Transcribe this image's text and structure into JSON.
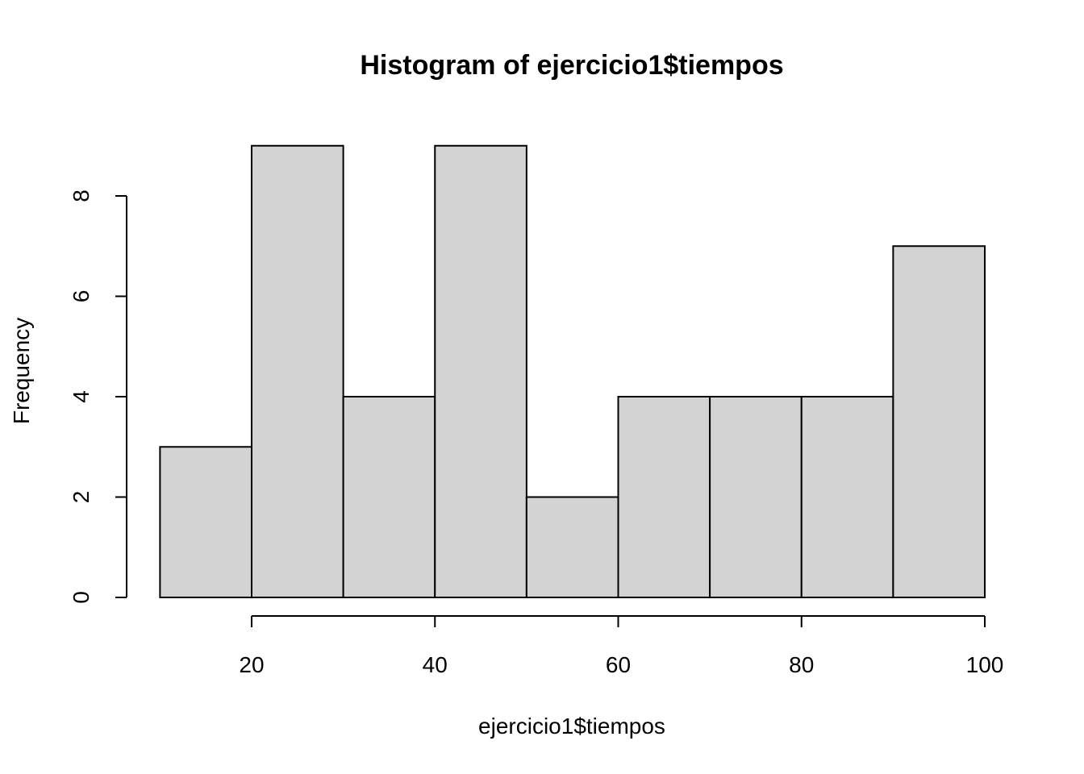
{
  "chart_data": {
    "type": "bar",
    "title": "Histogram of ejercicio1$tiempos",
    "xlabel": "ejercicio1$tiempos",
    "ylabel": "Frequency",
    "bins": [
      {
        "start": 10,
        "end": 20,
        "count": 3
      },
      {
        "start": 20,
        "end": 30,
        "count": 9
      },
      {
        "start": 30,
        "end": 40,
        "count": 4
      },
      {
        "start": 40,
        "end": 50,
        "count": 9
      },
      {
        "start": 50,
        "end": 60,
        "count": 2
      },
      {
        "start": 60,
        "end": 70,
        "count": 4
      },
      {
        "start": 70,
        "end": 80,
        "count": 4
      },
      {
        "start": 80,
        "end": 90,
        "count": 4
      },
      {
        "start": 90,
        "end": 100,
        "count": 7
      }
    ],
    "x_ticks": [
      "20",
      "40",
      "60",
      "80",
      "100"
    ],
    "y_ticks": [
      "0",
      "2",
      "4",
      "6",
      "8"
    ],
    "xlim": [
      20,
      100
    ],
    "ylim": [
      0,
      8
    ],
    "grid": false,
    "bar_color": "#d3d3d3",
    "edge_color": "#000000"
  }
}
